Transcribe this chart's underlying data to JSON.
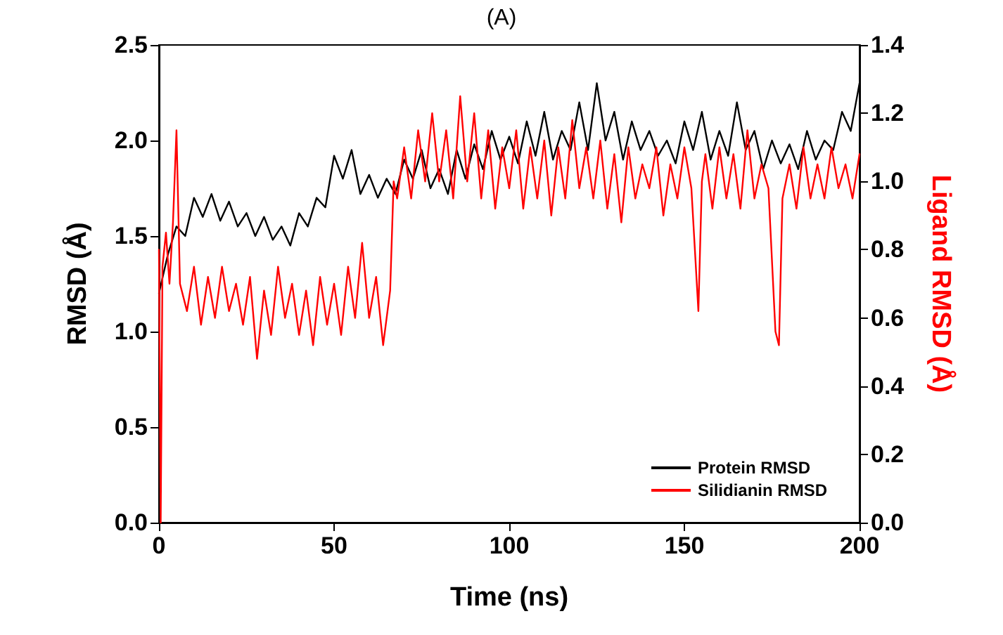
{
  "chart_data": {
    "type": "line",
    "title": "(A)",
    "xlabel": "Time (ns)",
    "ylabel": "RMSD (Å)",
    "y2label": "Ligand RMSD (Å)",
    "xlim": [
      0,
      200
    ],
    "xticks": [
      0,
      50,
      100,
      150,
      200
    ],
    "ylim": [
      0,
      2.5
    ],
    "yticks": [
      {
        "value": 0,
        "label": "0.0"
      },
      0.5,
      {
        "value": 1,
        "label": "1.0"
      },
      1.5,
      {
        "value": 2,
        "label": "2.0"
      },
      2.5
    ],
    "y2lim": [
      0,
      1.4
    ],
    "y2ticks": [
      {
        "value": 0,
        "label": "0.0"
      },
      0.2,
      0.4,
      0.6,
      0.8,
      {
        "value": 1,
        "label": "1.0"
      },
      1.2,
      1.4
    ],
    "grid": false,
    "legend": "bottom right",
    "marker": "none",
    "line_style": "solid",
    "series": [
      {
        "name": "Protein RMSD",
        "color": "#000000",
        "x": [
          0,
          2.5,
          5,
          7.5,
          10,
          12.5,
          15,
          17.5,
          20,
          22.5,
          25,
          27.5,
          30,
          32.5,
          35,
          37.5,
          40,
          42.5,
          45,
          47.5,
          50,
          52.5,
          55,
          57.5,
          60,
          62.5,
          65,
          67.5,
          70,
          72.5,
          75,
          77.5,
          80,
          82.5,
          85,
          87.5,
          90,
          92.5,
          95,
          97.5,
          100,
          102.5,
          105,
          107.5,
          110,
          112.5,
          115,
          117.5,
          120,
          122.5,
          125,
          127.5,
          130,
          132.5,
          135,
          137.5,
          140,
          142.5,
          145,
          147.5,
          150,
          152.5,
          155,
          157.5,
          160,
          162.5,
          165,
          167.5,
          170,
          172.5,
          175,
          177.5,
          180,
          182.5,
          185,
          187.5,
          190,
          192.5,
          195,
          197.5,
          200
        ],
        "values": [
          1.2,
          1.4,
          1.55,
          1.5,
          1.7,
          1.6,
          1.72,
          1.58,
          1.68,
          1.55,
          1.62,
          1.5,
          1.6,
          1.48,
          1.55,
          1.45,
          1.62,
          1.55,
          1.7,
          1.65,
          1.92,
          1.8,
          1.95,
          1.72,
          1.82,
          1.7,
          1.8,
          1.72,
          1.9,
          1.8,
          1.95,
          1.75,
          1.85,
          1.72,
          1.95,
          1.8,
          1.98,
          1.85,
          2.05,
          1.9,
          2.02,
          1.88,
          2.1,
          1.92,
          2.15,
          1.9,
          2.05,
          1.95,
          2.2,
          1.95,
          2.3,
          2.0,
          2.15,
          1.9,
          2.1,
          1.95,
          2.05,
          1.92,
          2.0,
          1.88,
          2.1,
          1.95,
          2.15,
          1.9,
          2.05,
          1.92,
          2.2,
          1.95,
          2.05,
          1.85,
          2.0,
          1.88,
          1.98,
          1.85,
          2.05,
          1.9,
          2.0,
          1.95,
          2.15,
          2.05,
          2.3
        ]
      },
      {
        "name": "Silidianin RMSD",
        "color": "#ff0000",
        "axis": "y2",
        "x": [
          0,
          0.5,
          1,
          2,
          3,
          4,
          5,
          6,
          8,
          10,
          12,
          14,
          16,
          18,
          20,
          22,
          24,
          26,
          28,
          30,
          32,
          34,
          36,
          38,
          40,
          42,
          44,
          46,
          48,
          50,
          52,
          54,
          56,
          58,
          60,
          62,
          64,
          66,
          67,
          68,
          70,
          72,
          74,
          76,
          78,
          80,
          82,
          84,
          86,
          88,
          90,
          92,
          94,
          96,
          98,
          100,
          102,
          104,
          106,
          108,
          110,
          112,
          114,
          116,
          118,
          120,
          122,
          124,
          126,
          128,
          130,
          132,
          134,
          136,
          138,
          140,
          142,
          144,
          146,
          148,
          150,
          152,
          154,
          155,
          156,
          158,
          160,
          162,
          164,
          166,
          168,
          170,
          172,
          174,
          176,
          177,
          178,
          180,
          182,
          184,
          186,
          188,
          190,
          192,
          194,
          196,
          198,
          200
        ],
        "values": [
          0.8,
          0.0,
          0.75,
          0.85,
          0.7,
          0.88,
          1.15,
          0.7,
          0.62,
          0.75,
          0.58,
          0.72,
          0.6,
          0.75,
          0.62,
          0.7,
          0.58,
          0.72,
          0.48,
          0.68,
          0.55,
          0.75,
          0.6,
          0.7,
          0.55,
          0.68,
          0.52,
          0.72,
          0.58,
          0.7,
          0.55,
          0.75,
          0.6,
          0.82,
          0.6,
          0.72,
          0.52,
          0.68,
          1.0,
          0.95,
          1.1,
          0.95,
          1.15,
          1.0,
          1.2,
          1.0,
          1.15,
          0.95,
          1.25,
          1.0,
          1.2,
          0.95,
          1.15,
          0.92,
          1.1,
          0.98,
          1.15,
          0.92,
          1.1,
          0.95,
          1.12,
          0.9,
          1.1,
          0.95,
          1.18,
          0.98,
          1.1,
          0.95,
          1.12,
          0.92,
          1.08,
          0.88,
          1.1,
          0.95,
          1.05,
          0.98,
          1.1,
          0.9,
          1.05,
          0.95,
          1.1,
          0.98,
          0.62,
          1.0,
          1.08,
          0.92,
          1.1,
          0.95,
          1.08,
          0.92,
          1.15,
          0.95,
          1.05,
          0.98,
          0.56,
          0.52,
          0.95,
          1.05,
          0.92,
          1.1,
          0.95,
          1.05,
          0.95,
          1.1,
          0.98,
          1.05,
          0.95,
          1.08
        ]
      }
    ]
  }
}
